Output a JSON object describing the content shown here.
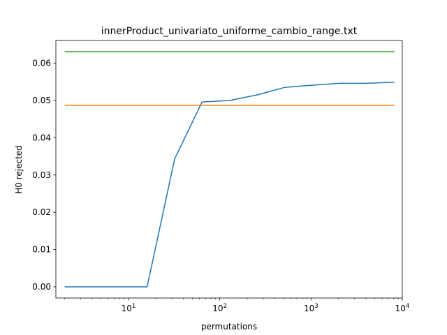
{
  "chart_data": {
    "type": "line",
    "title": "innerProduct_univariato_uniforme_cambio_range.txt",
    "xlabel": "permutations",
    "ylabel": "H0 rejected",
    "xscale": "log",
    "xlim": [
      1.6,
      10000
    ],
    "ylim": [
      -0.003,
      0.0661
    ],
    "xticks": [
      {
        "value": 10,
        "base": "10",
        "exp": "1"
      },
      {
        "value": 100,
        "base": "10",
        "exp": "2"
      },
      {
        "value": 1000,
        "base": "10",
        "exp": "3"
      },
      {
        "value": 10000,
        "base": "10",
        "exp": "4"
      }
    ],
    "yticks": [
      {
        "value": 0.0,
        "label": "0.00"
      },
      {
        "value": 0.01,
        "label": "0.01"
      },
      {
        "value": 0.02,
        "label": "0.02"
      },
      {
        "value": 0.03,
        "label": "0.03"
      },
      {
        "value": 0.04,
        "label": "0.04"
      },
      {
        "value": 0.05,
        "label": "0.05"
      },
      {
        "value": 0.06,
        "label": "0.06"
      }
    ],
    "grid": false,
    "series": [
      {
        "color": "#1f77b4",
        "x": [
          2,
          4,
          8,
          16,
          32,
          64,
          128,
          256,
          512,
          1024,
          2048,
          4096,
          8192
        ],
        "y": [
          0.0,
          0.0,
          0.0,
          0.0,
          0.0343,
          0.0496,
          0.05,
          0.0515,
          0.0535,
          0.0541,
          0.0546,
          0.0546,
          0.0549
        ]
      },
      {
        "color": "#ff7f0e",
        "x": [
          2,
          8192
        ],
        "y": [
          0.0487,
          0.0487
        ]
      },
      {
        "color": "#2ca02c",
        "x": [
          2,
          8192
        ],
        "y": [
          0.0631,
          0.0631
        ]
      }
    ]
  }
}
